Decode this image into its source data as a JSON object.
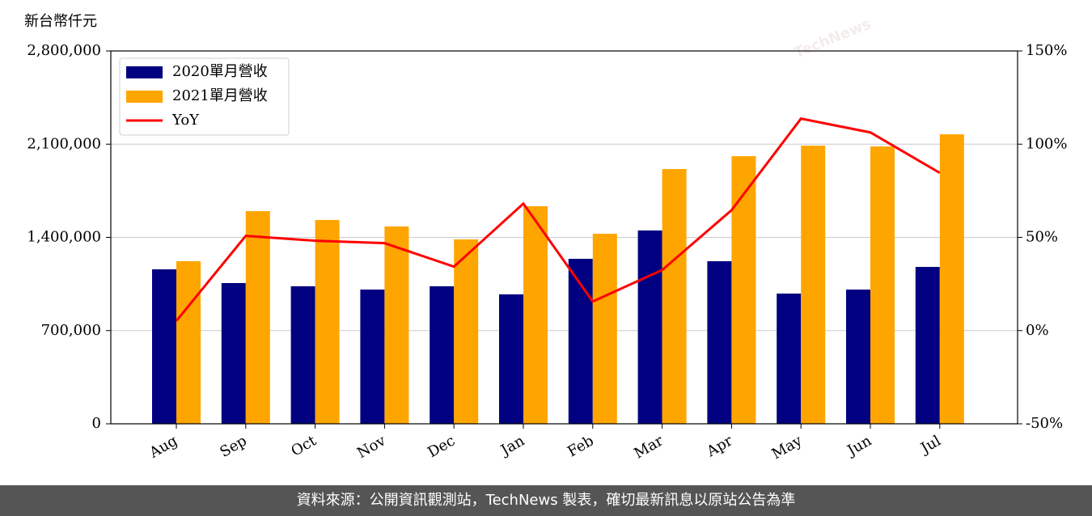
{
  "chart_data": {
    "type": "bar-line",
    "y_axis_label": "新台幣仟元",
    "categories": [
      "Aug",
      "Sep",
      "Oct",
      "Nov",
      "Dec",
      "Jan",
      "Feb",
      "Mar",
      "Apr",
      "May",
      "Jun",
      "Jul"
    ],
    "series": [
      {
        "name": "2020單月營收",
        "color": "#000080",
        "type": "bar",
        "values": [
          1160000,
          1057000,
          1033000,
          1008000,
          1033000,
          972000,
          1239000,
          1452000,
          1221000,
          978000,
          1008000,
          1178000
        ]
      },
      {
        "name": "2021單月營收",
        "color": "#ffa500",
        "type": "bar",
        "values": [
          1221000,
          1597000,
          1531000,
          1482000,
          1385000,
          1634000,
          1427000,
          1913000,
          2010000,
          2089000,
          2083000,
          2174000
        ]
      },
      {
        "name": "YoY",
        "color": "#ff0000",
        "type": "line",
        "axis": "y2",
        "values": [
          5.2,
          50.8,
          48.2,
          46.9,
          34.3,
          68.1,
          15.6,
          32.5,
          64.6,
          113.7,
          106.3,
          84.6
        ]
      }
    ],
    "ylim": [
      0,
      2800000
    ],
    "yticks": [
      0,
      {
        "value": 700000,
        "label": "700,000"
      },
      {
        "value": 1400000,
        "label": "1,400,000"
      },
      {
        "value": 2100000,
        "label": "2,100,000"
      },
      {
        "value": 2800000,
        "label": "2,800,000"
      }
    ],
    "y2lim": [
      -50,
      150
    ],
    "y2ticks": [
      {
        "value": -50,
        "label": "-50%"
      },
      {
        "value": 0,
        "label": "0%"
      },
      {
        "value": 50,
        "label": "50%"
      },
      {
        "value": 100,
        "label": "100%"
      },
      {
        "value": 150,
        "label": "150%"
      }
    ],
    "grid": true,
    "legend": "upper left",
    "watermark": "TechNews",
    "footer": "資料來源：公開資訊觀測站，TechNews 製表，確切最新訊息以原站公告為準"
  }
}
